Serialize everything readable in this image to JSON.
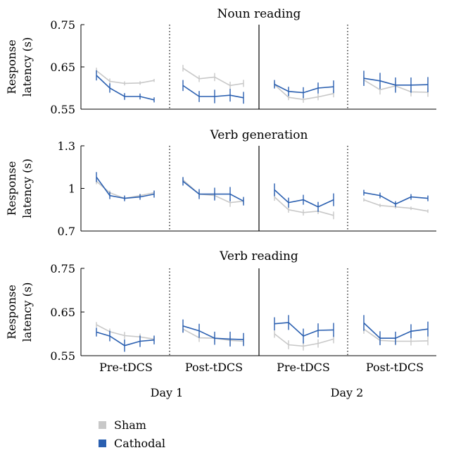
{
  "colors": {
    "sham": "#c8c8c8",
    "cathodal": "#2a5fb0",
    "axis": "#000000"
  },
  "chart_data": [
    {
      "type": "line",
      "title": "Noun reading",
      "ylabel": [
        "Response",
        "latency (s)"
      ],
      "ylim": [
        0.55,
        0.75
      ],
      "yticks": [
        "0.75",
        "0.65",
        "0.55"
      ],
      "ytick_values": [
        0.75,
        0.65,
        0.55
      ],
      "groups": [
        "Day 1 Pre-tDCS",
        "Day 1 Post-tDCS",
        "Day 2 Pre-tDCS",
        "Day 2 Post-tDCS"
      ],
      "series": [
        {
          "name": "Sham",
          "values": [
            [
              0.641,
              0.616,
              0.611,
              0.612,
              0.618
            ],
            [
              0.647,
              0.622,
              0.626,
              0.606,
              0.611
            ],
            [
              0.608,
              0.578,
              0.573,
              0.579,
              0.587
            ],
            [
              0.619,
              0.596,
              0.605,
              0.591,
              0.59
            ]
          ]
        },
        {
          "name": "Cathodal",
          "values": [
            [
              0.63,
              0.6,
              0.58,
              0.58,
              0.572
            ],
            [
              0.606,
              0.58,
              0.58,
              0.583,
              0.577
            ],
            [
              0.609,
              0.592,
              0.589,
              0.6,
              0.603
            ],
            [
              0.623,
              0.617,
              0.607,
              0.607,
              0.608
            ]
          ]
        }
      ],
      "errors": [
        [
          0.012,
          0.011,
          0.008,
          0.007,
          0.006
        ],
        [
          0.013,
          0.013,
          0.016,
          0.015,
          0.014
        ],
        [
          0.01,
          0.011,
          0.013,
          0.013,
          0.015
        ],
        [
          0.018,
          0.019,
          0.018,
          0.018,
          0.018
        ]
      ]
    },
    {
      "type": "line",
      "title": "Verb generation",
      "ylabel": [
        "Response",
        "latency (s)"
      ],
      "ylim": [
        0.7,
        1.3
      ],
      "yticks": [
        "1.3",
        "1",
        "0.7"
      ],
      "ytick_values": [
        1.3,
        1.0,
        0.7
      ],
      "groups": [
        "Day 1 Pre-tDCS",
        "Day 1 Post-tDCS",
        "Day 2 Pre-tDCS",
        "Day 2 Post-tDCS"
      ],
      "series": [
        {
          "name": "Sham",
          "values": [
            [
              1.05,
              0.97,
              0.93,
              0.95,
              0.97
            ],
            [
              1.06,
              0.96,
              0.95,
              0.9,
              0.91
            ],
            [
              0.94,
              0.85,
              0.83,
              0.84,
              0.81
            ],
            [
              0.92,
              0.88,
              0.87,
              0.86,
              0.84
            ]
          ]
        },
        {
          "name": "Cathodal",
          "values": [
            [
              1.08,
              0.95,
              0.93,
              0.94,
              0.96
            ],
            [
              1.05,
              0.96,
              0.96,
              0.96,
              0.91
            ],
            [
              0.99,
              0.9,
              0.92,
              0.87,
              0.92
            ],
            [
              0.97,
              0.95,
              0.89,
              0.94,
              0.93
            ]
          ]
        }
      ],
      "errors": [
        [
          0.035,
          0.025,
          0.02,
          0.02,
          0.025
        ],
        [
          0.03,
          0.035,
          0.045,
          0.05,
          0.03
        ],
        [
          0.045,
          0.035,
          0.035,
          0.035,
          0.045
        ],
        [
          0.02,
          0.02,
          0.02,
          0.02,
          0.02
        ]
      ]
    },
    {
      "type": "line",
      "title": "Verb reading",
      "ylabel": [
        "Response",
        "latency (s)"
      ],
      "ylim": [
        0.55,
        0.75
      ],
      "yticks": [
        "0.75",
        "0.65",
        "0.55"
      ],
      "ytick_values": [
        0.75,
        0.65,
        0.55
      ],
      "groups": [
        "Day 1 Pre-tDCS",
        "Day 1 Post-tDCS",
        "Day 2 Pre-tDCS",
        "Day 2 Post-tDCS"
      ],
      "series": [
        {
          "name": "Sham",
          "values": [
            [
              0.621,
              0.605,
              0.596,
              0.593,
              0.588
            ],
            [
              0.611,
              0.591,
              0.59,
              0.585,
              0.583
            ],
            [
              0.6,
              0.575,
              0.572,
              0.578,
              0.588
            ],
            [
              0.611,
              0.585,
              0.583,
              0.583,
              0.584
            ]
          ]
        },
        {
          "name": "Cathodal",
          "values": [
            [
              0.604,
              0.595,
              0.573,
              0.583,
              0.586
            ],
            [
              0.618,
              0.607,
              0.59,
              0.588,
              0.587
            ],
            [
              0.623,
              0.626,
              0.595,
              0.608,
              0.609
            ],
            [
              0.625,
              0.59,
              0.59,
              0.606,
              0.611
            ]
          ]
        }
      ],
      "errors": [
        [
          0.01,
          0.012,
          0.014,
          0.013,
          0.01
        ],
        [
          0.015,
          0.016,
          0.015,
          0.017,
          0.015
        ],
        [
          0.015,
          0.017,
          0.017,
          0.016,
          0.016
        ],
        [
          0.018,
          0.016,
          0.015,
          0.016,
          0.017
        ]
      ]
    }
  ],
  "x_axis": {
    "phase_labels": [
      "Pre-tDCS",
      "Post-tDCS",
      "Pre-tDCS",
      "Post-tDCS"
    ],
    "day_labels": [
      "Day 1",
      "Day 2"
    ]
  },
  "legend": [
    {
      "label": "Sham",
      "color": "#c8c8c8"
    },
    {
      "label": "Cathodal",
      "color": "#2a5fb0"
    }
  ]
}
